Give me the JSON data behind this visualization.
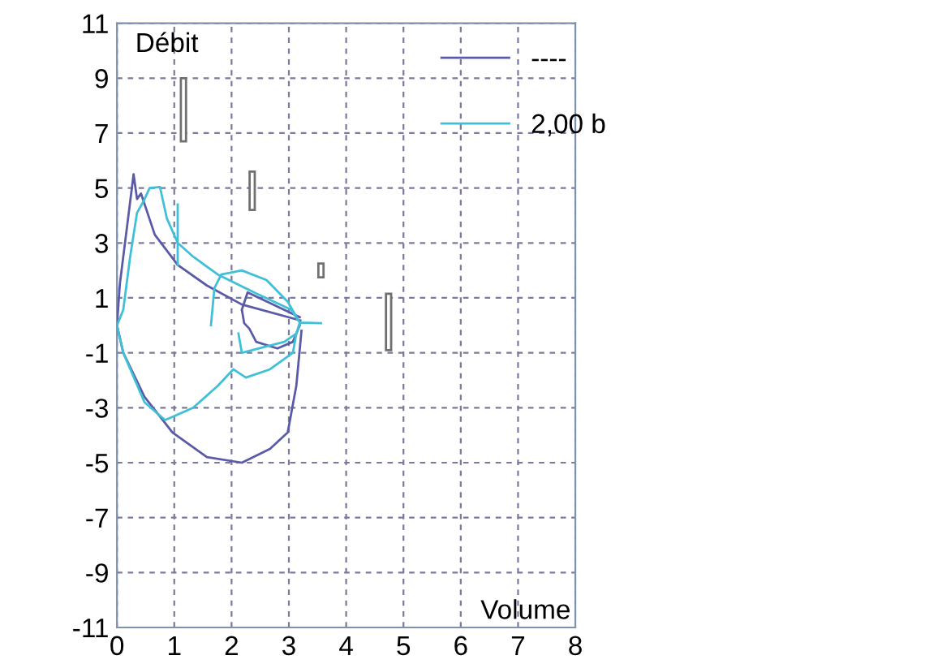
{
  "chart_data": {
    "type": "line",
    "xlabel": "Volume",
    "ylabel": "Débit",
    "xlim": [
      0,
      8
    ],
    "ylim": [
      -11,
      11
    ],
    "xticks": [
      0,
      1,
      2,
      3,
      4,
      5,
      6,
      7,
      8
    ],
    "yticks": [
      -11,
      -9,
      -7,
      -5,
      -3,
      -1,
      1,
      3,
      5,
      7,
      9,
      11
    ],
    "grid": true,
    "legend": "top right",
    "line_style": "solid",
    "marker": "none",
    "series": [
      {
        "name": "----",
        "color": "#5a5aa8",
        "x": [
          0,
          0.05,
          0.29,
          0.35,
          0.42,
          0.66,
          1.06,
          1.57,
          2.18,
          3.2,
          null,
          0,
          0.11,
          0.48,
          0.97,
          1.57,
          2.18,
          2.67,
          2.98,
          3.13,
          3.22,
          null,
          2.18,
          2.28,
          3.19,
          null,
          2.18,
          2.22,
          2.31,
          2.43,
          2.8,
          3.07,
          3.19
        ],
        "values": [
          0,
          1.5,
          5.5,
          4.6,
          4.8,
          3.3,
          2.2,
          1.45,
          0.76,
          0.18,
          null,
          0,
          -1.0,
          -2.6,
          -3.9,
          -4.8,
          -5.0,
          -4.5,
          -3.9,
          -2.2,
          -0.2,
          null,
          0.57,
          1.2,
          0.3,
          null,
          0.57,
          0.08,
          -0.12,
          -0.6,
          -0.84,
          -0.6,
          0
        ]
      },
      {
        "name": "2,00 b",
        "color": "#40c0d8",
        "x": [
          0,
          0.11,
          0.23,
          0.35,
          0.46,
          0.57,
          0.75,
          0.87,
          1.06,
          1.33,
          1.76,
          2.43,
          3.04,
          3.19,
          3.56,
          null,
          0,
          0.11,
          0.48,
          0.84,
          1.33,
          1.76,
          2.03,
          2.25,
          2.67,
          3.07,
          3.13,
          3.19,
          null,
          1.64,
          1.7,
          1.82,
          2.18,
          2.61,
          2.98,
          3.19,
          null,
          2.12,
          2.18,
          2.92,
          3.13,
          3.19,
          null,
          1.06,
          1.06
        ],
        "values": [
          0,
          0.57,
          2.5,
          4.1,
          4.5,
          5.0,
          5.04,
          3.9,
          3.0,
          2.5,
          1.85,
          1.16,
          0.57,
          0.1,
          0.08,
          null,
          0,
          -1.0,
          -2.8,
          -3.45,
          -3.0,
          -2.2,
          -1.6,
          -1.9,
          -1.6,
          -1.0,
          -0.3,
          0.05,
          null,
          0,
          1.35,
          1.85,
          2.0,
          1.65,
          0.86,
          0.1,
          null,
          -0.3,
          -1.0,
          -0.6,
          -0.3,
          0.1,
          null,
          2.2,
          4.4
        ]
      },
      {
        "type": "bar",
        "color": "#707070",
        "x": [
          1.16,
          2.36,
          3.56,
          4.74
        ],
        "base": [
          6.7,
          4.2,
          1.75,
          -0.9
        ],
        "values": [
          2.3,
          1.4,
          0.5,
          2.05
        ]
      }
    ]
  }
}
